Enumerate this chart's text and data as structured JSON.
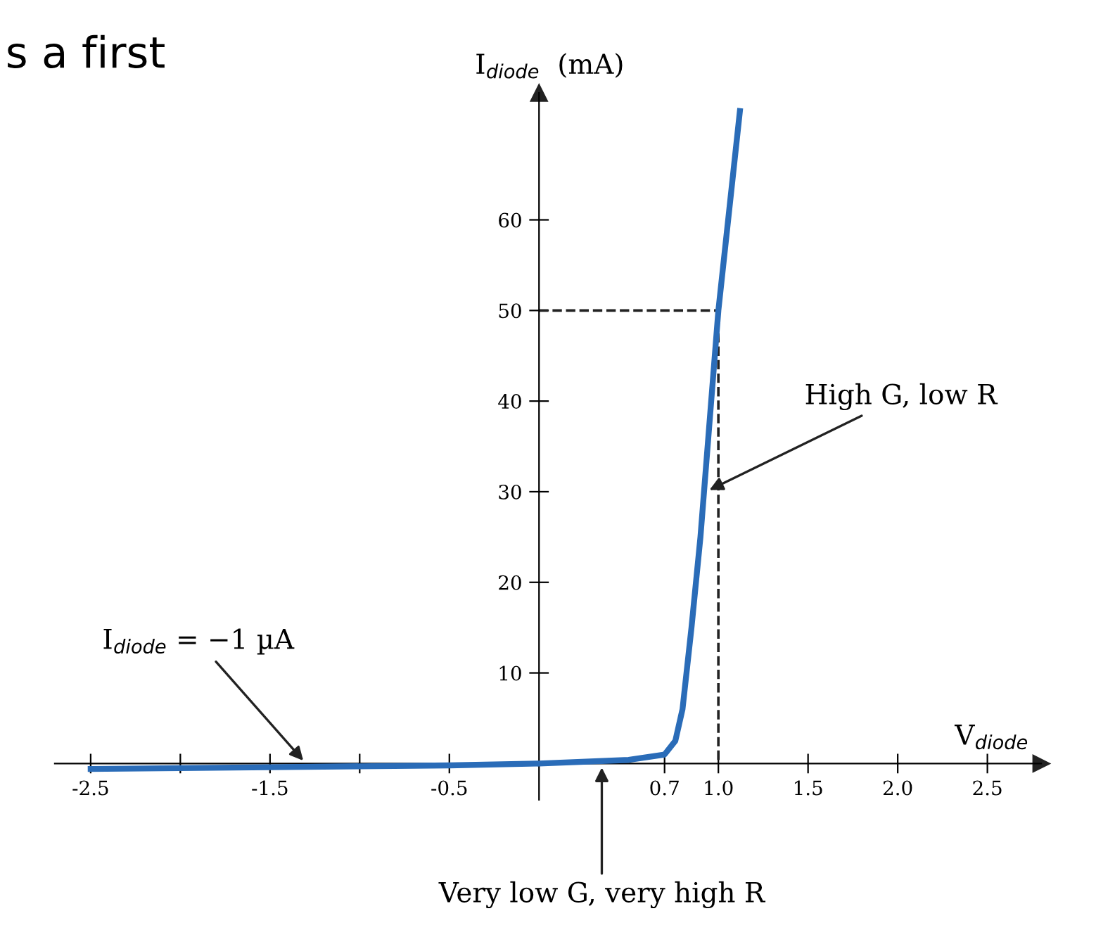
{
  "chart_data": {
    "type": "line",
    "xlabel": "V$_{diode}$",
    "ylabel": "I$_{diode}$  (mA)",
    "series": [
      {
        "color": "#2a6cb8",
        "x": [
          -2.5,
          -1.5,
          -0.5,
          0,
          0.5,
          0.7,
          0.76,
          0.8,
          0.85,
          0.9,
          1.0,
          1.12
        ],
        "values": [
          -0.6,
          -0.4,
          -0.2,
          0,
          0.4,
          1,
          2.5,
          6,
          15,
          25,
          50,
          72
        ]
      },
      {
        "color": "#222222",
        "line_style": "dashed",
        "x": [
          0,
          1.0,
          1.0
        ],
        "values": [
          50,
          50,
          0
        ]
      }
    ],
    "xlim": [
      -2.7,
      2.8
    ],
    "ylim": [
      -4,
      74
    ],
    "xticks": [
      -2.5,
      {
        "value": -2,
        "label": null
      },
      -1.5,
      {
        "value": -1,
        "label": null
      },
      -0.5,
      0.7,
      {
        "value": 1,
        "label": "1.0"
      },
      1.5,
      {
        "value": 2,
        "label": "2.0"
      },
      2.5
    ],
    "yticks": [
      10,
      20,
      30,
      40,
      50,
      60
    ],
    "grid": false,
    "marker": "none",
    "line_style": "solid",
    "annotations": [
      {
        "text": "I$_{diode}$ = −1 µA",
        "x": -1.3,
        "y": 0
      },
      {
        "text": "High G, low R",
        "x": 0.93,
        "y": 30
      },
      {
        "text": "Very low G, very high R",
        "x": 0.35,
        "y": 0
      },
      "s a first"
    ]
  }
}
